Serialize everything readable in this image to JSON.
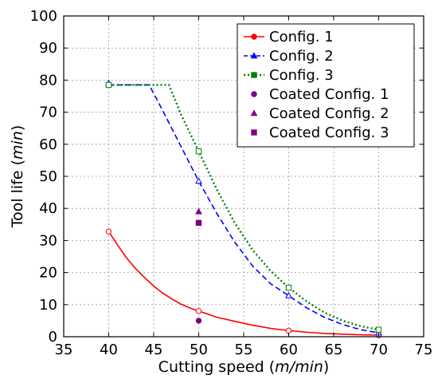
{
  "chart_data": {
    "type": "line",
    "xlabel_prefix": "Cutting speed (",
    "xlabel_unit": "m/min",
    "xlabel_suffix": ")",
    "ylabel_prefix": "Tool life (",
    "ylabel_unit": "min",
    "ylabel_suffix": ")",
    "xlim": [
      35,
      75
    ],
    "ylim": [
      0,
      100
    ],
    "xticks": [
      35,
      40,
      45,
      50,
      55,
      60,
      65,
      70,
      75
    ],
    "yticks": [
      0,
      10,
      20,
      30,
      40,
      50,
      60,
      70,
      80,
      90,
      100
    ],
    "grid": true,
    "legend_position": "top-right",
    "series": [
      {
        "name": "Config. 1",
        "color": "#ff0000",
        "line_style": "solid",
        "marker": "circle",
        "points": [
          [
            40,
            32.8
          ],
          [
            50,
            8.0
          ],
          [
            60,
            1.9
          ],
          [
            70,
            0.5
          ]
        ],
        "curve": [
          [
            40,
            32.8
          ],
          [
            41,
            28.5
          ],
          [
            42,
            24.5
          ],
          [
            43,
            21.2
          ],
          [
            44,
            18.4
          ],
          [
            45,
            15.8
          ],
          [
            46,
            13.6
          ],
          [
            47,
            11.8
          ],
          [
            48,
            10.2
          ],
          [
            49,
            9.0
          ],
          [
            50,
            8.0
          ],
          [
            52,
            6.1
          ],
          [
            54,
            4.8
          ],
          [
            56,
            3.6
          ],
          [
            58,
            2.6
          ],
          [
            60,
            1.9
          ],
          [
            62,
            1.4
          ],
          [
            64,
            1.0
          ],
          [
            66,
            0.8
          ],
          [
            68,
            0.6
          ],
          [
            70,
            0.5
          ]
        ]
      },
      {
        "name": "Config. 2",
        "color": "#0000ff",
        "line_style": "dashed",
        "marker": "triangle",
        "points": [
          [
            40,
            79.0
          ],
          [
            50,
            48.5
          ],
          [
            60,
            12.8
          ],
          [
            70,
            1.2
          ]
        ],
        "curve": [
          [
            40,
            78.5
          ],
          [
            44.5,
            78.5
          ],
          [
            46,
            70.5
          ],
          [
            48,
            59.5
          ],
          [
            50,
            48.5
          ],
          [
            52,
            38.5
          ],
          [
            54,
            29.5
          ],
          [
            56,
            22.0
          ],
          [
            58,
            16.5
          ],
          [
            60,
            12.8
          ],
          [
            62,
            9.0
          ],
          [
            64,
            6.0
          ],
          [
            66,
            3.8
          ],
          [
            68,
            2.2
          ],
          [
            70,
            1.2
          ]
        ]
      },
      {
        "name": "Config. 3",
        "color": "#008000",
        "line_style": "dotted",
        "marker": "square",
        "points": [
          [
            40,
            78.5
          ],
          [
            50,
            57.8
          ],
          [
            60,
            15.3
          ],
          [
            70,
            2.2
          ]
        ],
        "curve": [
          [
            40,
            78.5
          ],
          [
            46.7,
            78.5
          ],
          [
            48,
            69.5
          ],
          [
            50,
            57.8
          ],
          [
            52,
            46.0
          ],
          [
            54,
            35.5
          ],
          [
            56,
            27.0
          ],
          [
            58,
            20.5
          ],
          [
            60,
            15.3
          ],
          [
            62,
            11.0
          ],
          [
            64,
            7.5
          ],
          [
            66,
            5.0
          ],
          [
            68,
            3.3
          ],
          [
            70,
            2.2
          ]
        ]
      },
      {
        "name": "Coated Config. 1",
        "color": "#800080",
        "marker": "circle",
        "points": [
          [
            50,
            5.0
          ]
        ]
      },
      {
        "name": "Coated Config. 2",
        "color": "#800080",
        "marker": "triangle",
        "points": [
          [
            50,
            39.0
          ]
        ]
      },
      {
        "name": "Coated Config. 3",
        "color": "#800080",
        "marker": "square",
        "points": [
          [
            50,
            35.5
          ]
        ]
      }
    ]
  }
}
